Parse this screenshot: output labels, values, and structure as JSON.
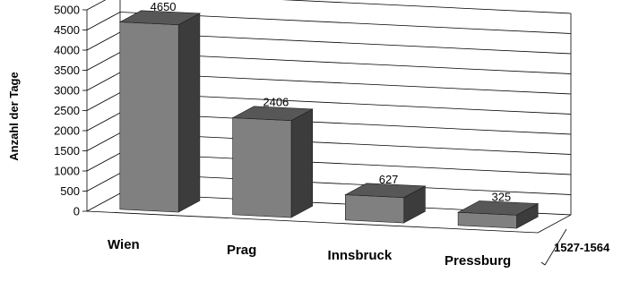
{
  "chart_data": {
    "type": "bar",
    "style": "3d-column",
    "categories": [
      "Wien",
      "Prag",
      "Innsbruck",
      "Pressburg"
    ],
    "series": [
      {
        "name": "1527-1564",
        "values": [
          4650,
          2406,
          627,
          325
        ]
      }
    ],
    "ylabel": "Anzahl der Tage",
    "xlabel": "",
    "ylim": [
      0,
      5000
    ],
    "yticks": [
      0,
      500,
      1000,
      1500,
      2000,
      2500,
      3000,
      3500,
      4000,
      4500,
      5000
    ],
    "data_labels": [
      "4650",
      "2406",
      "627",
      "325"
    ],
    "grid": true,
    "legend": "none",
    "colors": {
      "bar_front": "#808080",
      "bar_side": "#3c3c3c",
      "bar_top": "#575757",
      "grid": "#000000"
    }
  }
}
